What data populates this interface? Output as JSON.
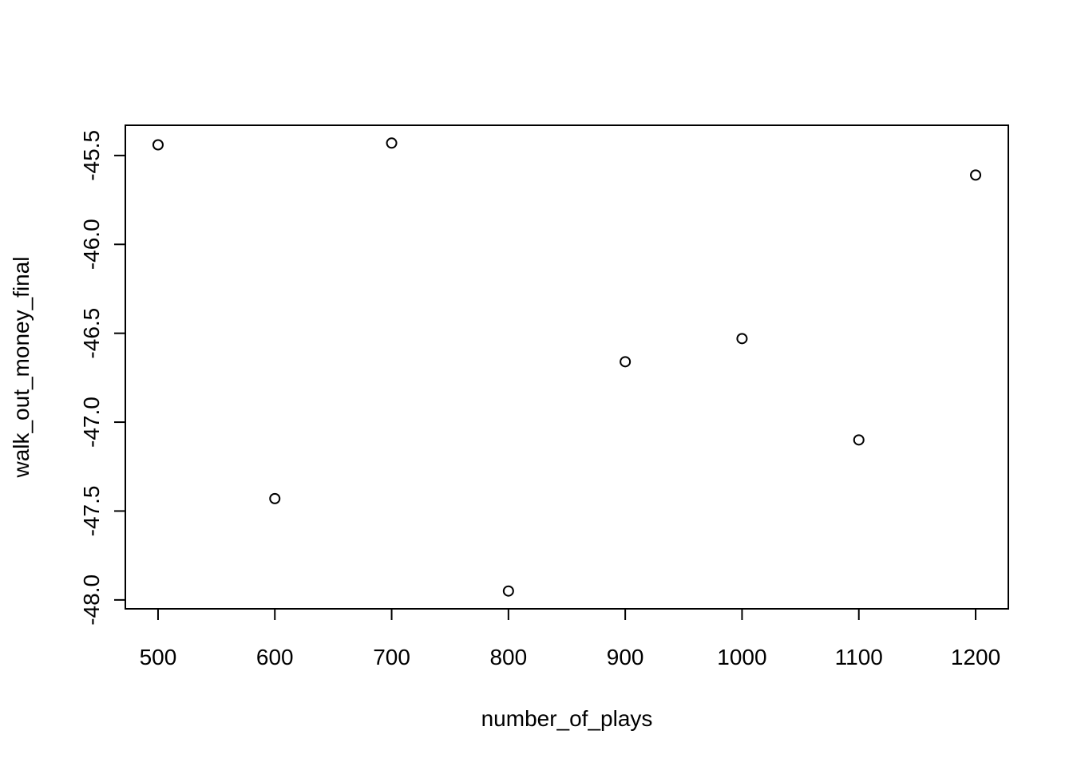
{
  "chart_data": {
    "type": "scatter",
    "xlabel": "number_of_plays",
    "ylabel": "walk_out_money_final",
    "x": [
      500,
      600,
      700,
      800,
      900,
      1000,
      1100,
      1200
    ],
    "y": [
      -45.44,
      -47.43,
      -45.43,
      -47.95,
      -46.66,
      -46.53,
      -47.1,
      -45.61
    ],
    "xticks": [
      500,
      600,
      700,
      800,
      900,
      1000,
      1100,
      1200
    ],
    "yticks": [
      -48.0,
      -47.5,
      -47.0,
      -46.5,
      -46.0,
      -45.5
    ],
    "ytick_labels": [
      "-48.0",
      "-47.5",
      "-47.0",
      "-46.5",
      "-46.0",
      "-45.5"
    ],
    "xlim": [
      472,
      1228
    ],
    "ylim": [
      -48.05,
      -45.33
    ],
    "grid": false,
    "marker": "open-circle"
  }
}
